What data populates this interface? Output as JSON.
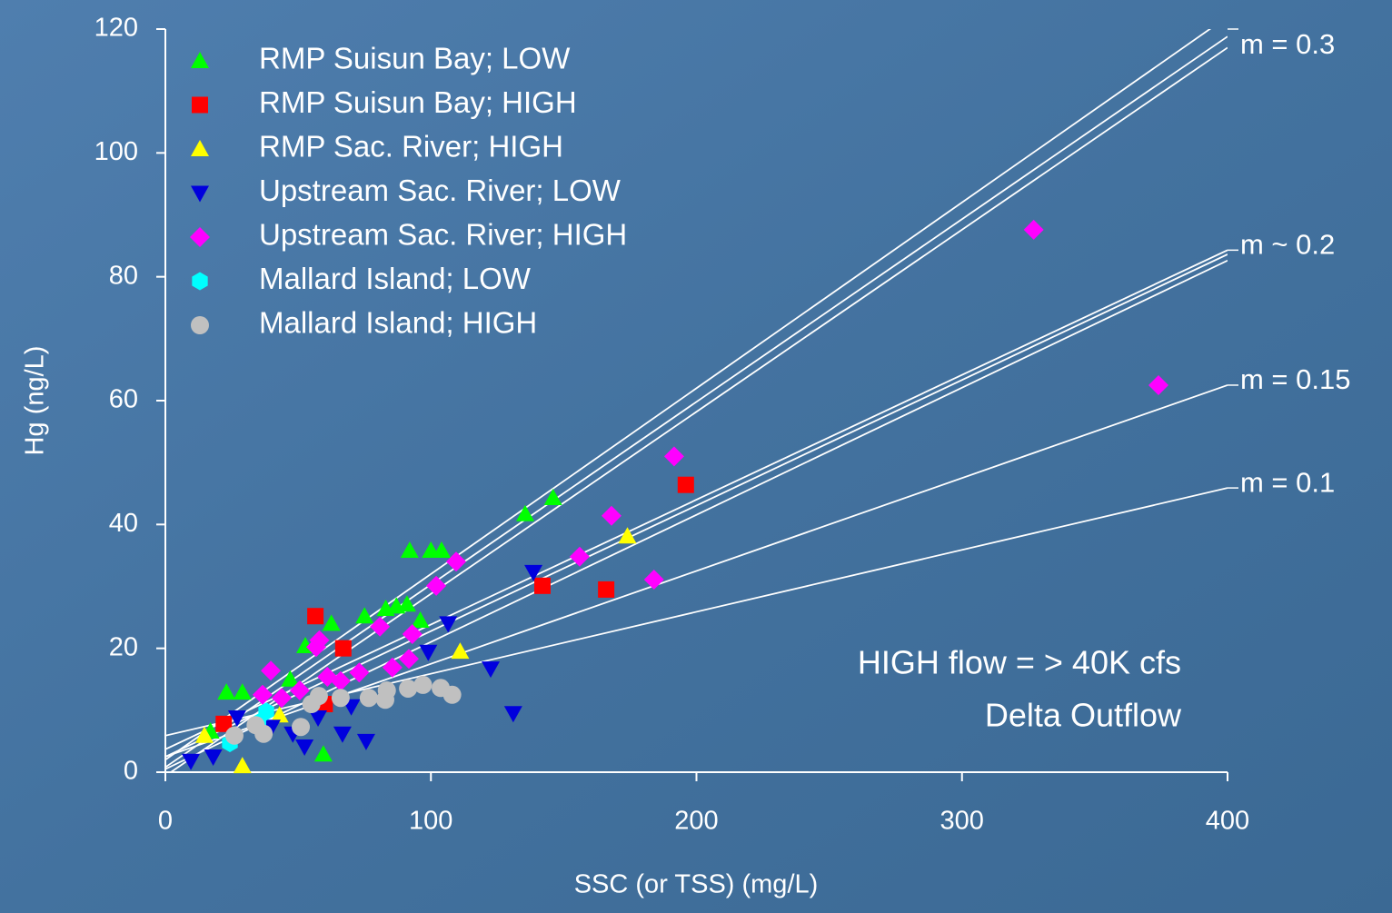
{
  "chart_data": {
    "type": "scatter",
    "xlabel": "SSC (or TSS) (mg/L)",
    "ylabel": "Hg (ng/L)",
    "xlim": [
      0,
      400
    ],
    "ylim": [
      0,
      120
    ],
    "xticks": [
      0,
      100,
      200,
      300,
      400
    ],
    "yticks": [
      0,
      20,
      40,
      60,
      80,
      100,
      120
    ],
    "legend": "upper left",
    "annotations": [
      "HIGH flow = > 40K cfs",
      "Delta Outflow"
    ],
    "series": [
      {
        "name": "RMP Suisun Bay; LOW",
        "color": "#00ff00",
        "marker": "triangle-up",
        "x": [
          135.5,
          146,
          92,
          100,
          104,
          75,
          83,
          87,
          91,
          62.5,
          52.7,
          59.5,
          23,
          29,
          17,
          96,
          47
        ],
        "values": [
          41.7,
          44.3,
          35.8,
          35.8,
          35.8,
          25.2,
          26.4,
          26.8,
          27.1,
          24,
          20.4,
          2.9,
          12.9,
          12.9,
          6.6,
          24.5,
          15
        ]
      },
      {
        "name": "RMP Suisun Bay; HIGH",
        "color": "#ff0000",
        "marker": "square",
        "x": [
          56.5,
          67,
          142,
          166,
          196,
          22,
          60
        ],
        "values": [
          25.2,
          20,
          30.1,
          29.5,
          46.4,
          7.8,
          11
        ]
      },
      {
        "name": "RMP Sac. River; HIGH",
        "color": "#ffff00",
        "marker": "triangle-up",
        "x": [
          174,
          111,
          29,
          14.7,
          43
        ],
        "values": [
          38.1,
          19.5,
          1,
          5.9,
          9.2
        ]
      },
      {
        "name": "Upstream Sac. River; LOW",
        "color": "#0000dd",
        "marker": "triangle-down",
        "x": [
          138.6,
          122.5,
          131,
          106.5,
          99,
          75.6,
          66.7,
          52.4,
          9.6,
          18,
          27,
          48,
          57.5,
          70,
          40
        ],
        "values": [
          32.3,
          16.7,
          9.5,
          24,
          19.4,
          5,
          6.2,
          4.1,
          1.8,
          2.5,
          8.8,
          6.2,
          8.8,
          10.6,
          7.3
        ]
      },
      {
        "name": "Upstream Sac. River; HIGH",
        "color": "#ff00ff",
        "marker": "diamond",
        "x": [
          327,
          374,
          191.6,
          168,
          156,
          184,
          109.5,
          102,
          93,
          91.7,
          80.8,
          85.5,
          56.8,
          58,
          39.7,
          36.6,
          66,
          73,
          50.6,
          43.8,
          61
        ],
        "values": [
          87.6,
          62.5,
          51,
          41.4,
          34.8,
          31.1,
          34,
          30.1,
          22.3,
          18.3,
          23.5,
          16.9,
          20.2,
          21.3,
          16.4,
          12.5,
          14.7,
          16.1,
          13.2,
          12,
          15.4
        ]
      },
      {
        "name": "Mallard Island; LOW",
        "color": "#00ffff",
        "marker": "hexagon",
        "x": [
          38,
          24.3,
          35
        ],
        "values": [
          9.8,
          4.7,
          8
        ]
      },
      {
        "name": "Mallard Island; HIGH",
        "color": "#c0c0c0",
        "marker": "circle",
        "x": [
          108,
          103.7,
          97,
          91.4,
          82.8,
          83.4,
          76.6,
          66,
          57.8,
          55,
          51,
          37,
          26,
          34
        ],
        "values": [
          12.5,
          13.6,
          14.1,
          13.5,
          11.7,
          13.2,
          12,
          12,
          12.3,
          11,
          7.3,
          6.2,
          5.9,
          7.6
        ]
      }
    ],
    "fit_lines": [
      {
        "label": "m = 0.3",
        "lines": [
          {
            "intercept": 2,
            "slope": 0.3
          },
          {
            "intercept": 0.8,
            "slope": 0.295
          },
          {
            "intercept": -0.6,
            "slope": 0.294
          }
        ]
      },
      {
        "label": "m ~ 0.2",
        "lines": [
          {
            "intercept": 3.7,
            "slope": 0.2015
          },
          {
            "intercept": 2.5,
            "slope": 0.2028
          },
          {
            "intercept": 0.5,
            "slope": 0.2053
          }
        ]
      },
      {
        "label": "m = 0.15",
        "lines": [
          {
            "intercept": 2.5,
            "slope": 0.15
          }
        ]
      },
      {
        "label": "m = 0.1",
        "lines": [
          {
            "intercept": 5.9,
            "slope": 0.1
          }
        ]
      }
    ]
  }
}
